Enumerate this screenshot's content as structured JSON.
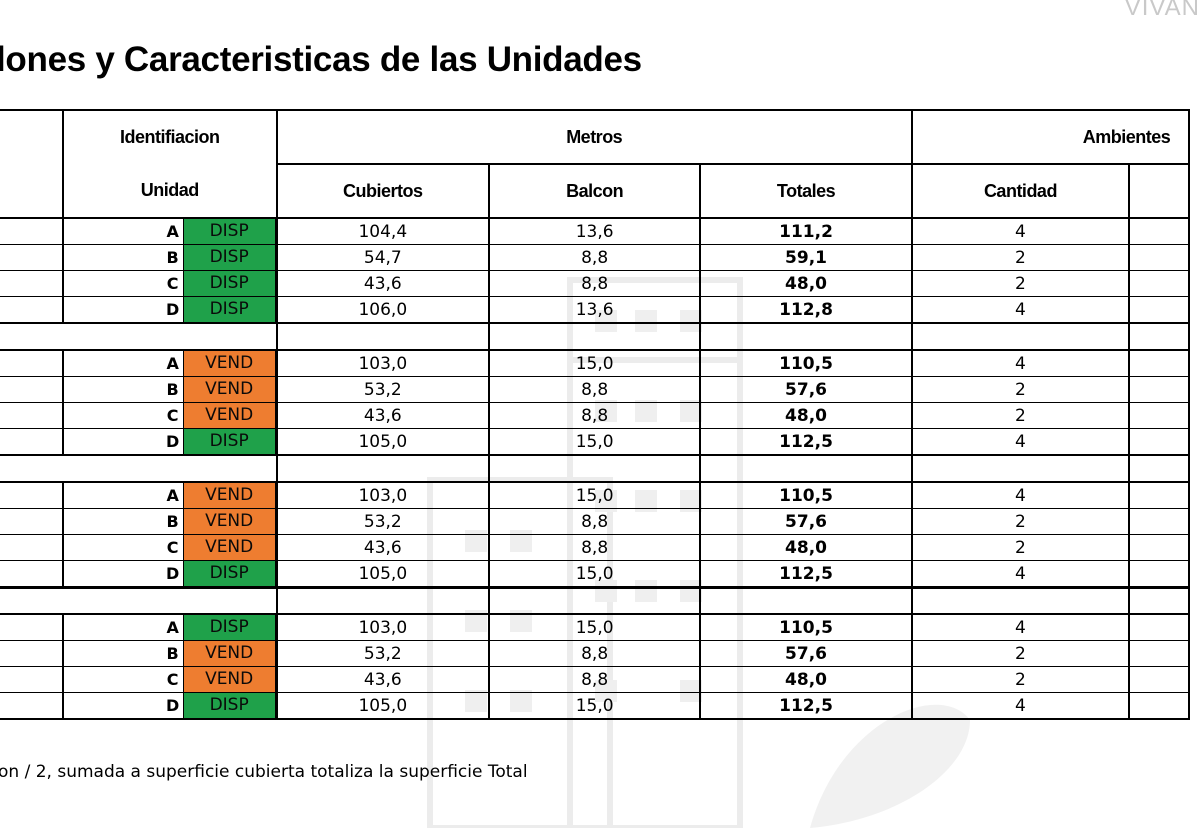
{
  "page": {
    "corner_text": "VIVAN",
    "title": "lones y Caracteristicas de las Unidades",
    "footnote": "on / 2, sumada a superficie cubierta totaliza la superficie Total"
  },
  "table": {
    "header_top": {
      "identificacion": "Identifiacion",
      "metros": "Metros",
      "ambientes": "Ambientes"
    },
    "header_sub": {
      "unidad": "Unidad",
      "cubiertos": "Cubiertos",
      "balcon": "Balcon",
      "totales": "Totales",
      "cantidad": "Cantidad"
    },
    "groups": [
      [
        {
          "unit": "A",
          "status": "DISP",
          "cubiertos": "104,4",
          "balcon": "13,6",
          "totales": "111,2",
          "cantidad": "4"
        },
        {
          "unit": "B",
          "status": "DISP",
          "cubiertos": "54,7",
          "balcon": "8,8",
          "totales": "59,1",
          "cantidad": "2"
        },
        {
          "unit": "C",
          "status": "DISP",
          "cubiertos": "43,6",
          "balcon": "8,8",
          "totales": "48,0",
          "cantidad": "2"
        },
        {
          "unit": "D",
          "status": "DISP",
          "cubiertos": "106,0",
          "balcon": "13,6",
          "totales": "112,8",
          "cantidad": "4"
        }
      ],
      [
        {
          "unit": "A",
          "status": "VEND",
          "cubiertos": "103,0",
          "balcon": "15,0",
          "totales": "110,5",
          "cantidad": "4"
        },
        {
          "unit": "B",
          "status": "VEND",
          "cubiertos": "53,2",
          "balcon": "8,8",
          "totales": "57,6",
          "cantidad": "2"
        },
        {
          "unit": "C",
          "status": "VEND",
          "cubiertos": "43,6",
          "balcon": "8,8",
          "totales": "48,0",
          "cantidad": "2"
        },
        {
          "unit": "D",
          "status": "DISP",
          "cubiertos": "105,0",
          "balcon": "15,0",
          "totales": "112,5",
          "cantidad": "4"
        }
      ],
      [
        {
          "unit": "A",
          "status": "VEND",
          "cubiertos": "103,0",
          "balcon": "15,0",
          "totales": "110,5",
          "cantidad": "4"
        },
        {
          "unit": "B",
          "status": "VEND",
          "cubiertos": "53,2",
          "balcon": "8,8",
          "totales": "57,6",
          "cantidad": "2"
        },
        {
          "unit": "C",
          "status": "VEND",
          "cubiertos": "43,6",
          "balcon": "8,8",
          "totales": "48,0",
          "cantidad": "2"
        },
        {
          "unit": "D",
          "status": "DISP",
          "cubiertos": "105,0",
          "balcon": "15,0",
          "totales": "112,5",
          "cantidad": "4"
        }
      ],
      [
        {
          "unit": "A",
          "status": "DISP",
          "cubiertos": "103,0",
          "balcon": "15,0",
          "totales": "110,5",
          "cantidad": "4"
        },
        {
          "unit": "B",
          "status": "VEND",
          "cubiertos": "53,2",
          "balcon": "8,8",
          "totales": "57,6",
          "cantidad": "2"
        },
        {
          "unit": "C",
          "status": "VEND",
          "cubiertos": "43,6",
          "balcon": "8,8",
          "totales": "48,0",
          "cantidad": "2"
        },
        {
          "unit": "D",
          "status": "DISP",
          "cubiertos": "105,0",
          "balcon": "15,0",
          "totales": "112,5",
          "cantidad": "4"
        }
      ]
    ]
  },
  "status_colors": {
    "DISP": "#1fa14a",
    "VEND": "#ee7d30"
  }
}
